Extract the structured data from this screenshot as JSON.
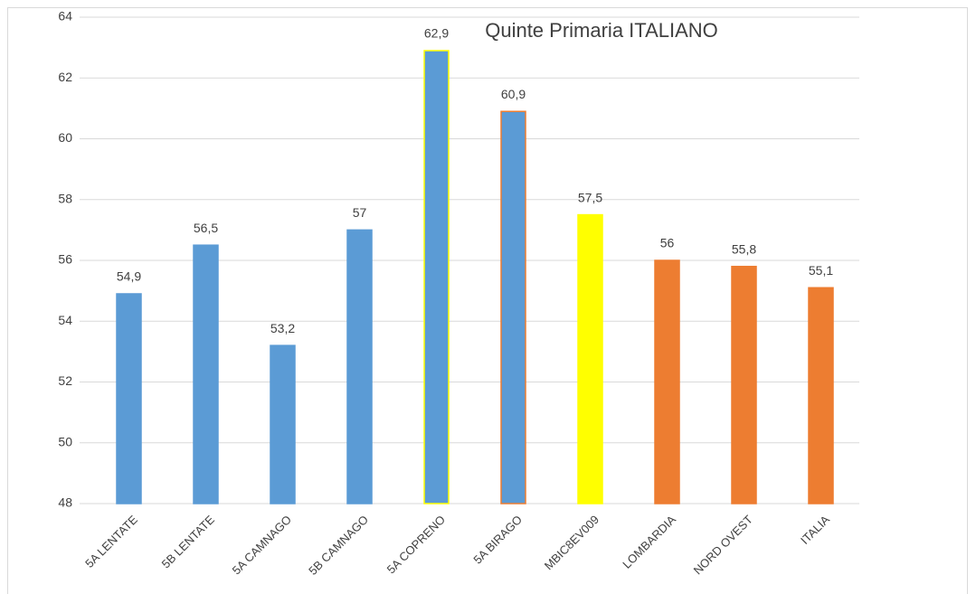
{
  "chart_data": {
    "type": "bar",
    "title": "Quinte Primaria ITALIANO",
    "categories": [
      "5A LENTATE",
      "5B LENTATE",
      "5A CAMNAGO",
      "5B CAMNAGO",
      "5A COPRENO",
      "5A BIRAGO",
      "MBIC8EV009",
      "LOMBARDIA",
      "NORD OVEST",
      "ITALIA"
    ],
    "values": [
      54.9,
      56.5,
      53.2,
      57,
      62.9,
      60.9,
      57.5,
      56,
      55.8,
      55.1
    ],
    "value_labels": [
      "54,9",
      "56,5",
      "53,2",
      "57",
      "62,9",
      "60,9",
      "57,5",
      "56",
      "55,8",
      "55,1"
    ],
    "colors": [
      "#5b9bd5",
      "#5b9bd5",
      "#5b9bd5",
      "#5b9bd5",
      "#5b9bd5",
      "#5b9bd5",
      "#ffff00",
      "#ed7d31",
      "#ed7d31",
      "#ed7d31"
    ],
    "edge_colors": [
      "#5b9bd5",
      "#5b9bd5",
      "#5b9bd5",
      "#5b9bd5",
      "#ffff00",
      "#ed7d31",
      "#ffff00",
      "#ed7d31",
      "#ed7d31",
      "#ed7d31"
    ],
    "ylim": [
      48,
      64
    ],
    "yticks": [
      48,
      50,
      52,
      54,
      56,
      58,
      60,
      62,
      64
    ],
    "grid": true
  }
}
